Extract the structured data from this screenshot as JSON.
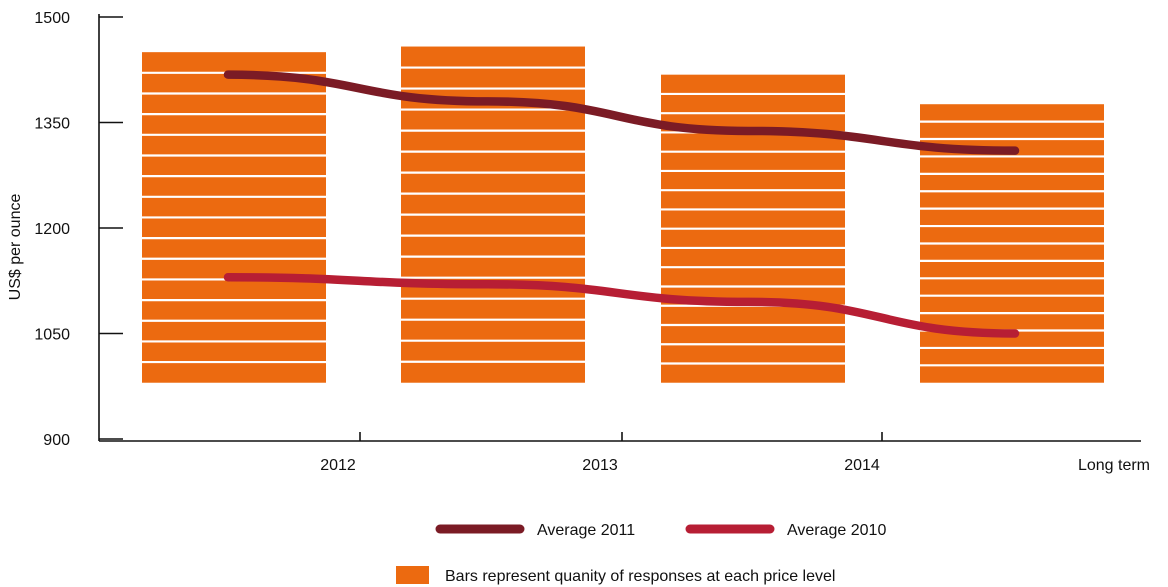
{
  "chart_data": {
    "type": "bar",
    "ylabel": "US$ per ounce",
    "ylim": [
      900,
      1500
    ],
    "yticks": [
      900,
      1050,
      1200,
      1350,
      1500
    ],
    "categories": [
      "2012",
      "2013",
      "2014",
      "Long term"
    ],
    "bars": {
      "bottom": 980,
      "tops": [
        1450,
        1458,
        1418,
        1376
      ],
      "stripes_per_bar": 16,
      "color": "#ec6a10"
    },
    "series": [
      {
        "name": "Average 2011",
        "color": "#7b1b25",
        "values": [
          1418,
          1380,
          1338,
          1310
        ]
      },
      {
        "name": "Average 2010",
        "color": "#b71e34",
        "values": [
          1130,
          1120,
          1095,
          1050
        ]
      }
    ],
    "bar_legend": "Bars represent quanity of responses at each price level",
    "grid": false,
    "legend_position": "bottom-center"
  }
}
